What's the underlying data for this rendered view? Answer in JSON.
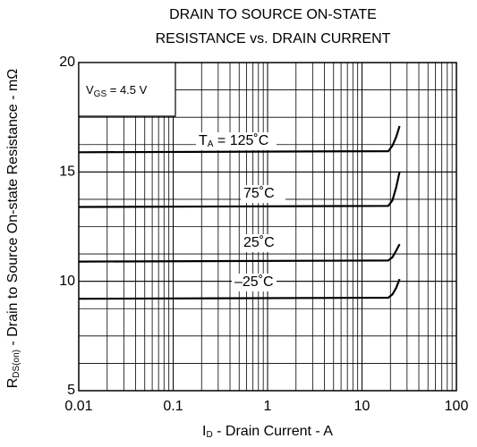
{
  "chart_data": {
    "type": "line",
    "title": [
      "DRAIN TO SOURCE ON-STATE",
      "RESISTANCE vs. DRAIN CURRENT"
    ],
    "y_label": {
      "main": "R",
      "sub": "DS(on)",
      "rest": " - Drain to Source On-state Resistance - mΩ"
    },
    "x_label": {
      "main": "I",
      "sub": "D",
      "rest": " - Drain Current - A"
    },
    "condition": {
      "main": "V",
      "sub": "GS",
      "rest": " = 4.5 V"
    },
    "label_prefix": {
      "main": "T",
      "sub": "A",
      "rest": " = "
    },
    "x_log": true,
    "grid": true,
    "xlim": [
      0.01,
      100
    ],
    "xticks": [
      0.01,
      0.1,
      1,
      10,
      100
    ],
    "ylim": [
      5,
      20
    ],
    "yticks": [
      5,
      10,
      15,
      20
    ],
    "x": [
      0.01,
      19,
      21,
      23,
      25
    ],
    "series": [
      {
        "name": "125˚C",
        "color": "#000000",
        "values": [
          15.9,
          15.95,
          16.2,
          16.6,
          17.1
        ]
      },
      {
        "name": "75˚C",
        "color": "#000000",
        "values": [
          13.4,
          13.45,
          13.7,
          14.3,
          15.0
        ]
      },
      {
        "name": "25˚C",
        "color": "#000000",
        "values": [
          10.9,
          10.95,
          11.1,
          11.4,
          11.7
        ]
      },
      {
        "name": "–25˚C",
        "color": "#000000",
        "values": [
          9.2,
          9.25,
          9.4,
          9.7,
          10.1
        ]
      }
    ]
  }
}
